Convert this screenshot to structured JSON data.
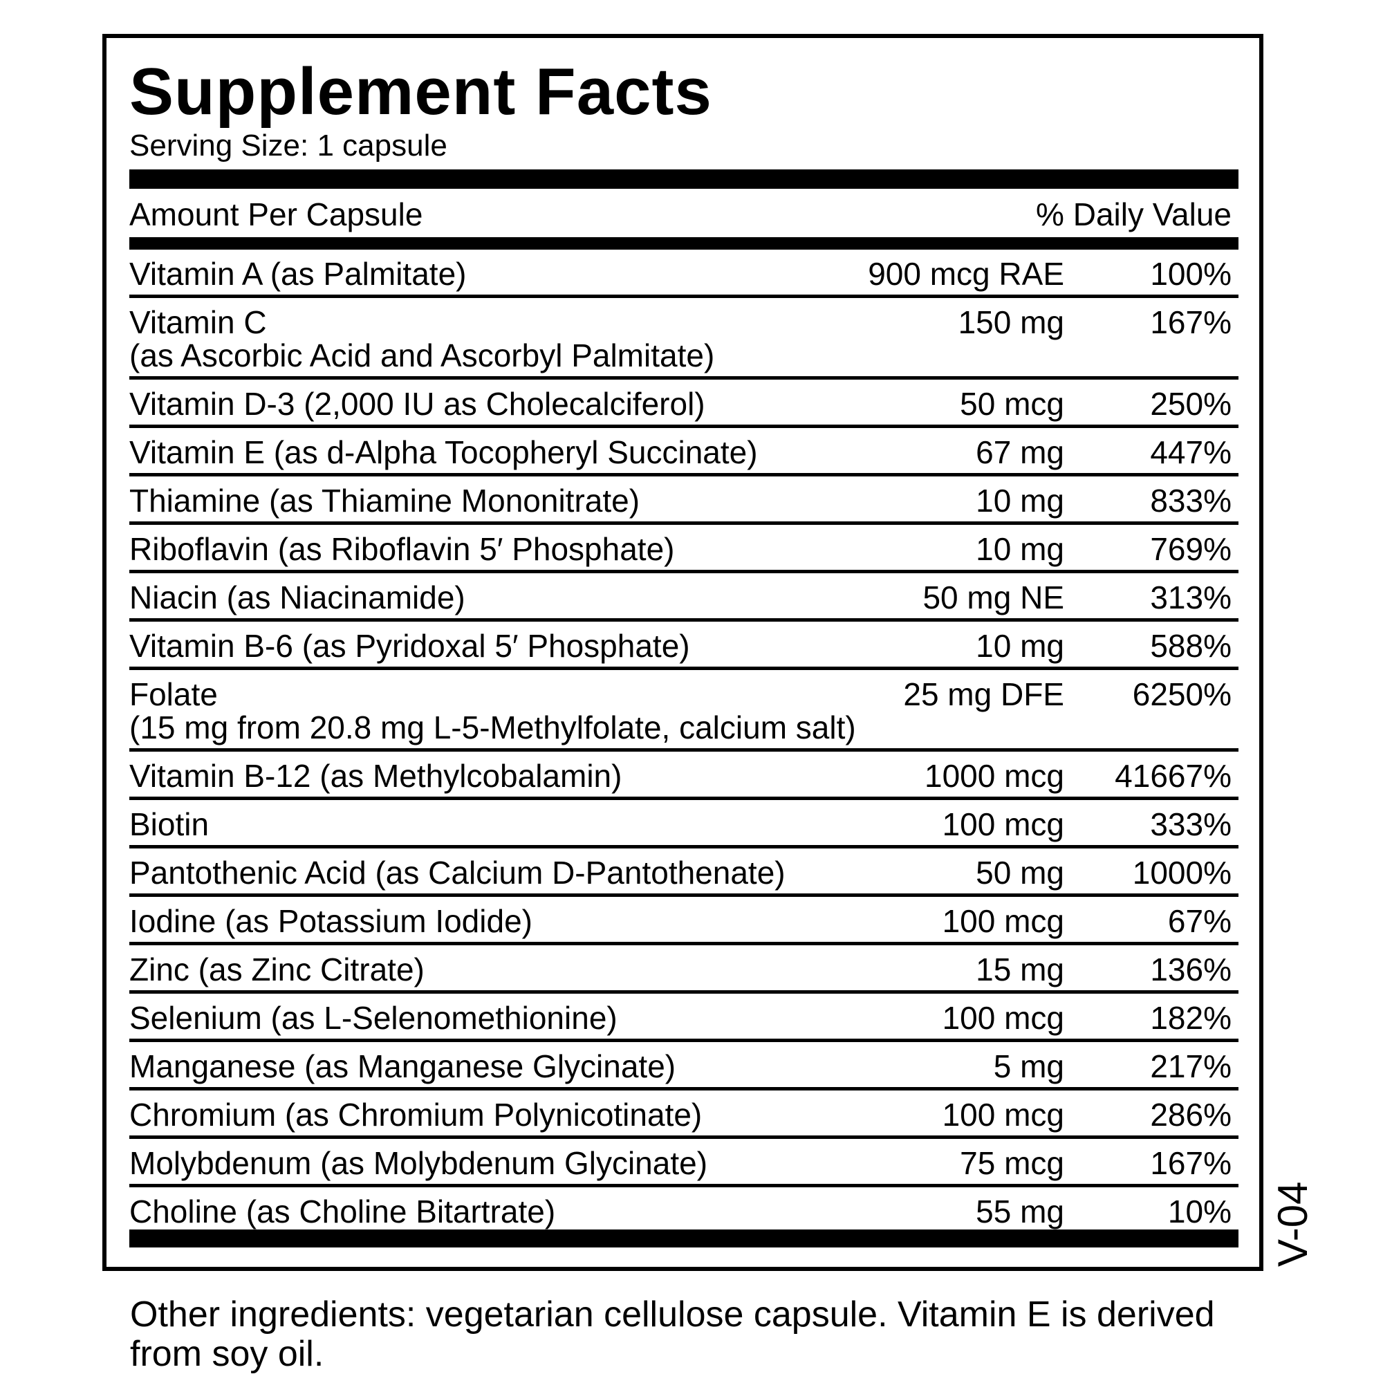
{
  "title": "Supplement Facts",
  "serving_size": "Serving Size: 1 capsule",
  "header": {
    "left": "Amount Per Capsule",
    "right": "% Daily Value"
  },
  "rows": [
    {
      "name": "Vitamin A (as Palmitate)",
      "amount": "900 mcg RAE",
      "dv": "100%"
    },
    {
      "name": "Vitamin C",
      "sub": "(as Ascorbic Acid and Ascorbyl Palmitate)",
      "amount": "150 mg",
      "dv": "167%"
    },
    {
      "name": "Vitamin D-3 (2,000 IU as Cholecalciferol)",
      "amount": "50 mcg",
      "dv": "250%"
    },
    {
      "name": "Vitamin E (as d-Alpha Tocopheryl Succinate)",
      "amount": "67 mg",
      "dv": "447%"
    },
    {
      "name": "Thiamine (as Thiamine Mononitrate)",
      "amount": "10 mg",
      "dv": "833%"
    },
    {
      "name": "Riboflavin (as Riboflavin 5′ Phosphate)",
      "amount": "10 mg",
      "dv": "769%"
    },
    {
      "name": "Niacin (as Niacinamide)",
      "amount": "50 mg NE",
      "dv": "313%"
    },
    {
      "name": "Vitamin B-6 (as Pyridoxal 5′ Phosphate)",
      "amount": "10 mg",
      "dv": "588%"
    },
    {
      "name": "Folate",
      "sub": "(15 mg from 20.8 mg L-5-Methylfolate, calcium salt)",
      "amount": "25 mg DFE",
      "dv": "6250%"
    },
    {
      "name": "Vitamin B-12 (as Methylcobalamin)",
      "amount": "1000 mcg",
      "dv": "41667%"
    },
    {
      "name": "Biotin",
      "amount": "100 mcg",
      "dv": "333%"
    },
    {
      "name": "Pantothenic Acid (as Calcium D-Pantothenate)",
      "amount": "50 mg",
      "dv": "1000%"
    },
    {
      "name": "Iodine (as Potassium Iodide)",
      "amount": "100 mcg",
      "dv": "67%"
    },
    {
      "name": "Zinc (as Zinc Citrate)",
      "amount": "15 mg",
      "dv": "136%"
    },
    {
      "name": "Selenium (as L-Selenomethionine)",
      "amount": "100 mcg",
      "dv": "182%"
    },
    {
      "name": "Manganese (as Manganese Glycinate)",
      "amount": "5 mg",
      "dv": "217%"
    },
    {
      "name": "Chromium (as Chromium Polynicotinate)",
      "amount": "100 mcg",
      "dv": "286%"
    },
    {
      "name": "Molybdenum (as Molybdenum Glycinate)",
      "amount": "75 mcg",
      "dv": "167%"
    },
    {
      "name": "Choline (as Choline Bitartrate)",
      "amount": "55 mg",
      "dv": "10%"
    }
  ],
  "version_code": "V-04",
  "other_ingredients": "Other ingredients: vegetarian cellulose capsule. Vitamin E is derived from soy oil."
}
